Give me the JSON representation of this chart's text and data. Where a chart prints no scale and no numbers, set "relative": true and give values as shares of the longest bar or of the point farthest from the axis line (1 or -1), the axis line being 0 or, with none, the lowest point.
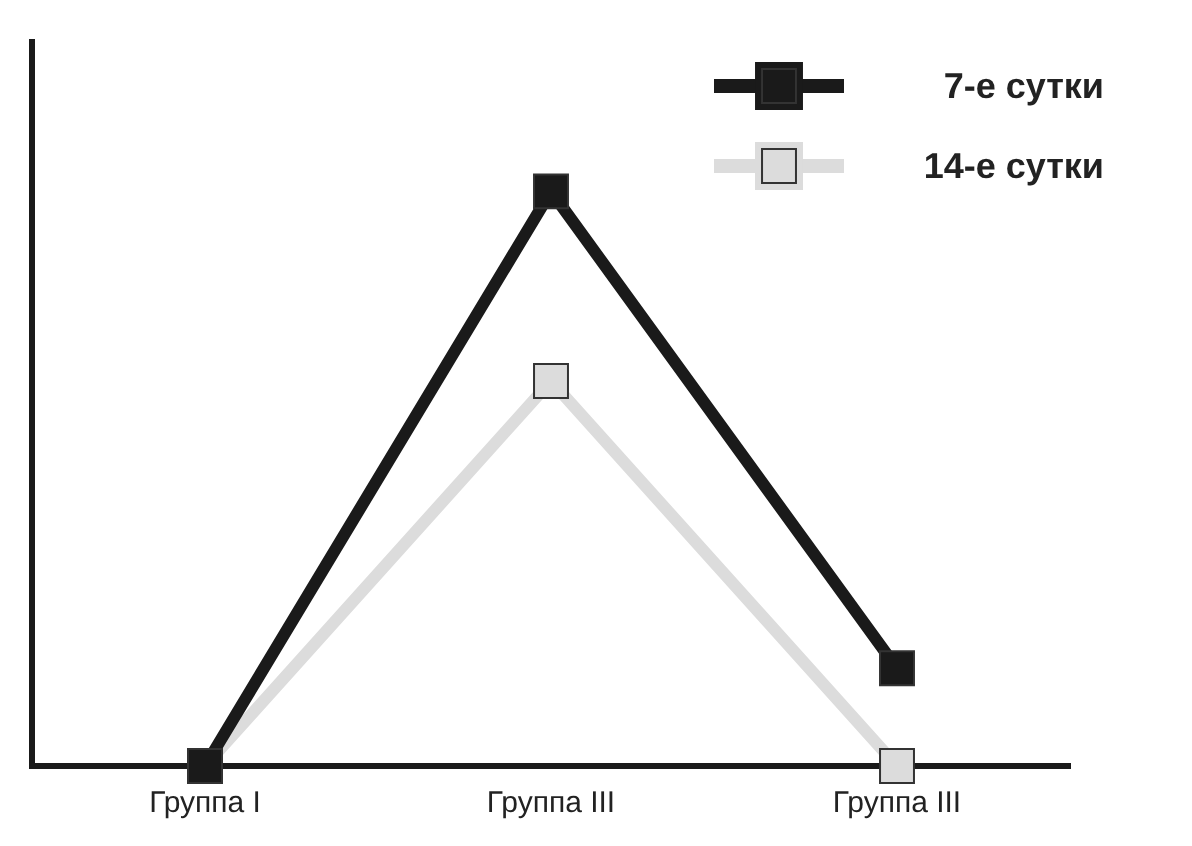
{
  "chart_data": {
    "type": "line",
    "categories": [
      "Группа I",
      "Группа III",
      "Группа III"
    ],
    "series": [
      {
        "name": "7-е сутки",
        "color": "#1a1a1a",
        "values": [
          0,
          1,
          0.17
        ]
      },
      {
        "name": "14-е сутки",
        "color": "#dcdcdc",
        "values": [
          0,
          0.67,
          0
        ]
      }
    ],
    "relative": true,
    "marker": "square",
    "legend": "top right",
    "grid": false
  }
}
